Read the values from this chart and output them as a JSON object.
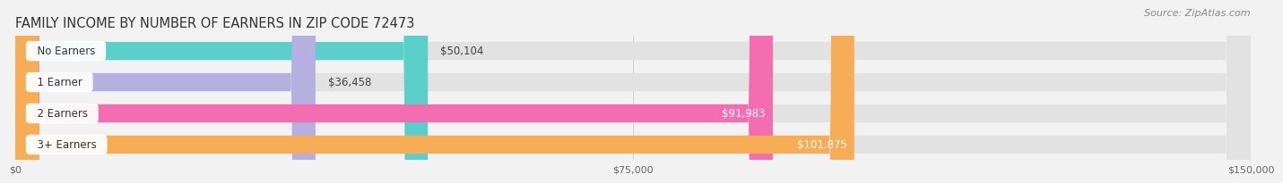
{
  "title": "FAMILY INCOME BY NUMBER OF EARNERS IN ZIP CODE 72473",
  "source": "Source: ZipAtlas.com",
  "categories": [
    "No Earners",
    "1 Earner",
    "2 Earners",
    "3+ Earners"
  ],
  "values": [
    50104,
    36458,
    91983,
    101875
  ],
  "bar_colors": [
    "#5bcfca",
    "#b5b0e0",
    "#f46db0",
    "#f7ad55"
  ],
  "label_colors": [
    "#444444",
    "#444444",
    "#ffffff",
    "#ffffff"
  ],
  "background_color": "#f2f2f2",
  "bar_bg_color": "#e2e2e2",
  "xlim": [
    0,
    150000
  ],
  "xticks": [
    0,
    75000,
    150000
  ],
  "xtick_labels": [
    "$0",
    "$75,000",
    "$150,000"
  ],
  "title_fontsize": 10.5,
  "source_fontsize": 8,
  "bar_height": 0.58,
  "label_fontsize": 8.5,
  "category_fontsize": 8.5,
  "value_threshold": 0.35
}
